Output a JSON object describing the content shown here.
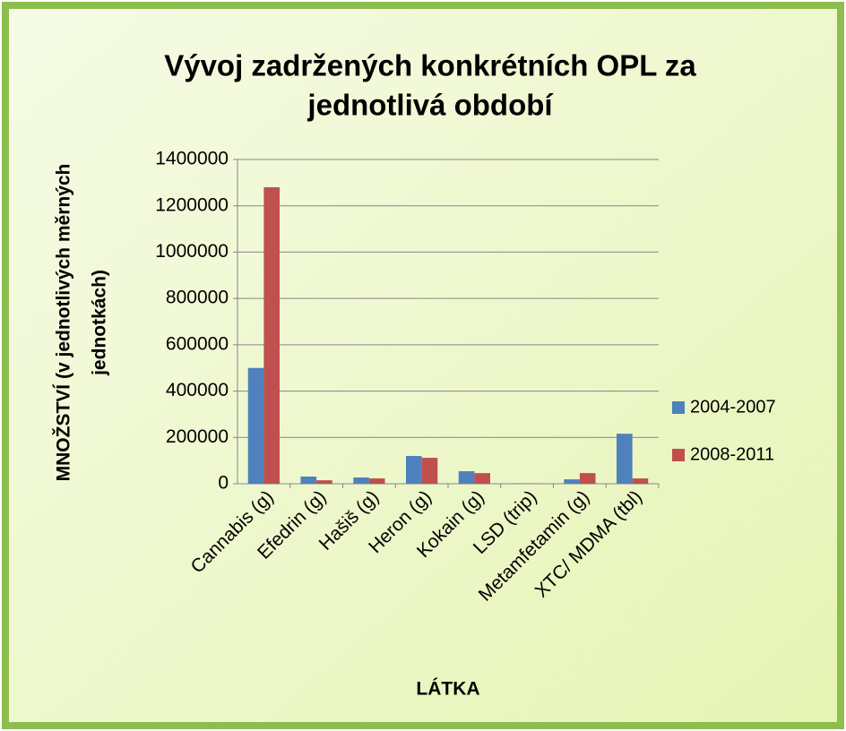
{
  "chart_data": {
    "type": "bar",
    "title": [
      "Vývoj zadržených konkrétních OPL za",
      "jednotlivá období"
    ],
    "ylabel": [
      "MNOŽSTVÍ (v jednotlivých měrných",
      "jednotkách)"
    ],
    "xlabel": "LÁTKA",
    "categories": [
      "Cannabis (g)",
      "Efedrin (g)",
      "Hašiš (g)",
      "Heron (g)",
      "Kokain (g)",
      "LSD (trip)",
      "Metamfetamin (g)",
      "XTC/ MDMA (tbl)"
    ],
    "series": [
      {
        "name": "2004-2007",
        "color": "#4f81bd",
        "values": [
          500000,
          31000,
          27000,
          120000,
          54000,
          2000,
          19000,
          216000
        ]
      },
      {
        "name": "2008-2011",
        "color": "#c0504d",
        "values": [
          1280000,
          15000,
          23000,
          112000,
          46000,
          1000,
          46000,
          23000
        ]
      }
    ],
    "ylim": [
      0,
      1400000
    ],
    "yticks": [
      0,
      200000,
      400000,
      600000,
      800000,
      1000000,
      1200000,
      1400000
    ],
    "grid": true,
    "legend": "right"
  }
}
